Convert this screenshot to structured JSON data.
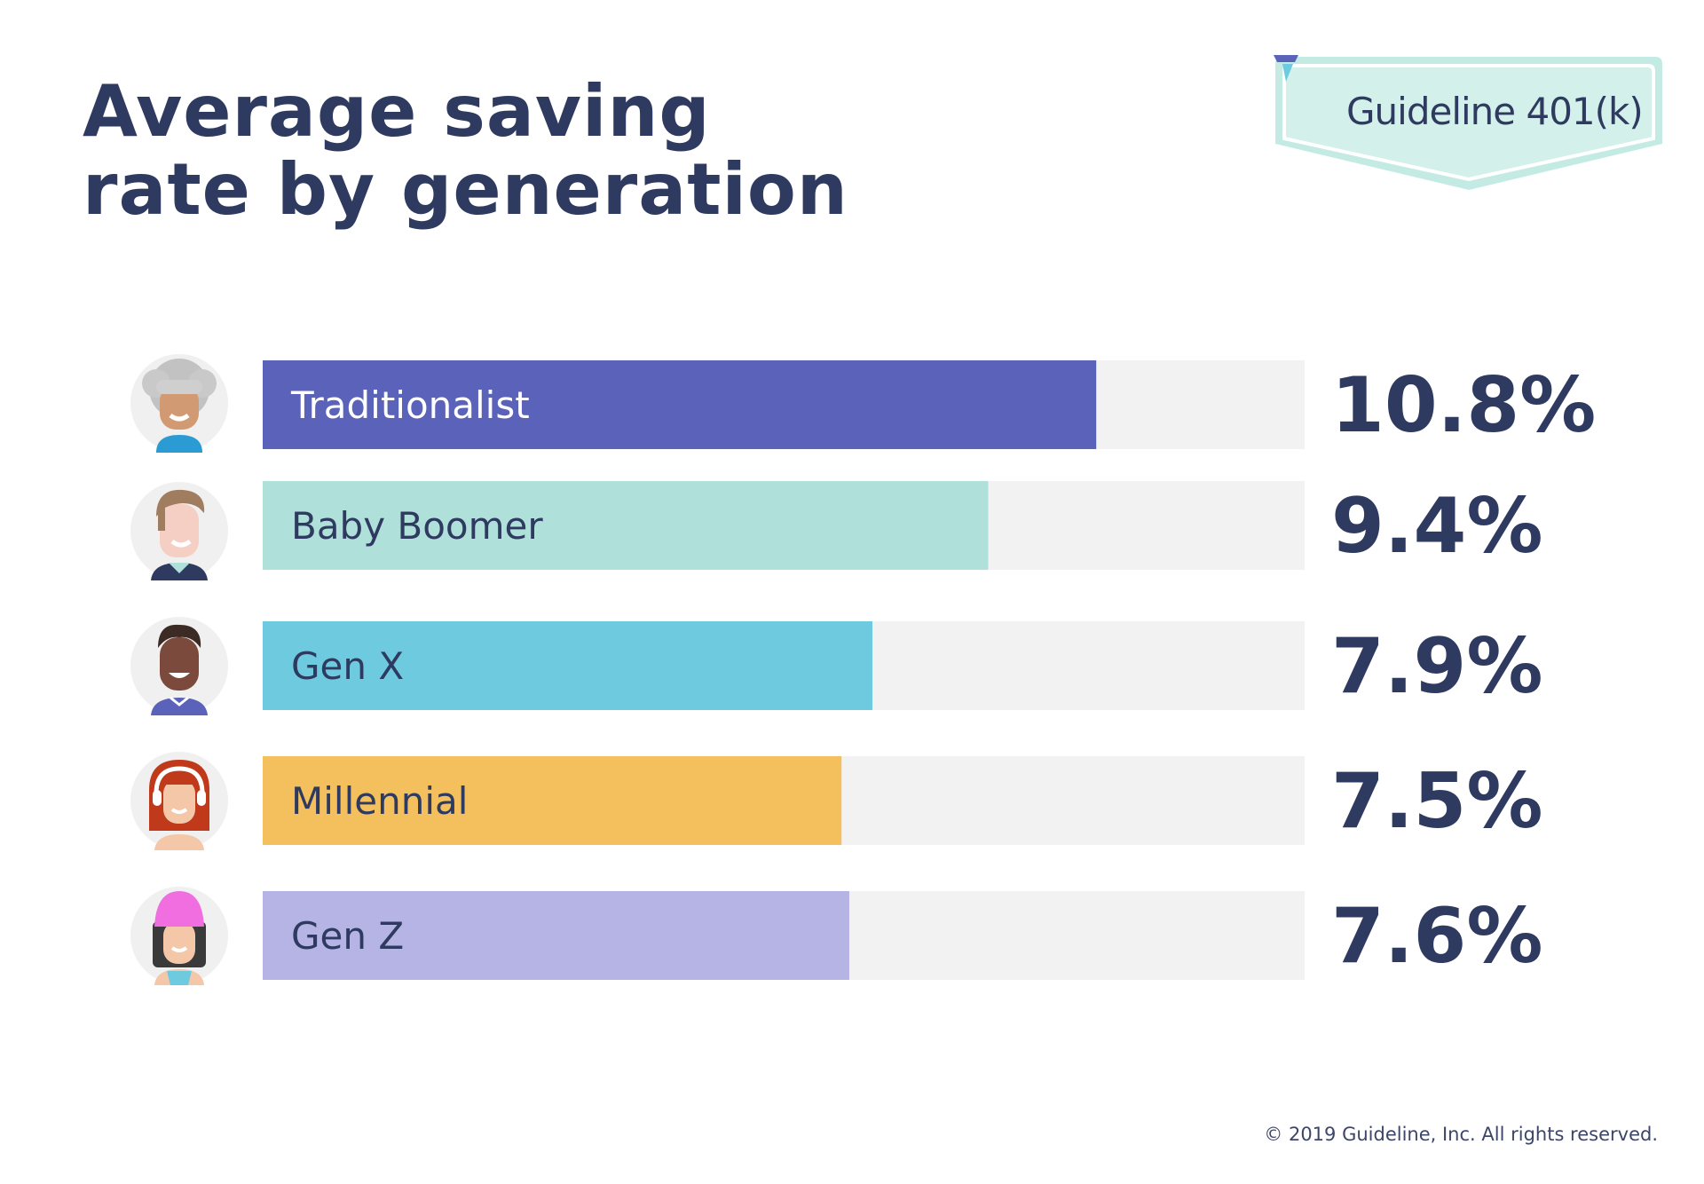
{
  "title_line1": "Average saving",
  "title_line2": "rate by generation",
  "logo": {
    "text": "Guideline 401(k)",
    "icon": "guideline-logo-icon",
    "badge_color": "#d3f0ea",
    "text_color": "#2e3a5f"
  },
  "footer": "© 2019 Guideline, Inc. All rights reserved.",
  "chart_data": {
    "type": "bar",
    "orientation": "horizontal",
    "title": "Average saving rate by generation",
    "categories": [
      "Traditionalist",
      "Baby Boomer",
      "Gen X",
      "Millennial",
      "Gen Z"
    ],
    "values": [
      10.8,
      9.4,
      7.9,
      7.5,
      7.6
    ],
    "value_labels": [
      "10.8%",
      "9.4%",
      "7.9%",
      "7.5%",
      "7.6%"
    ],
    "unit": "%",
    "xlim": [
      0,
      13.5
    ],
    "grid": false,
    "legend": "none",
    "colors": [
      "#5b62b9",
      "#afe0d9",
      "#6ecbdf",
      "#f4c05d",
      "#b6b3e5"
    ],
    "track_color": "#f2f2f2",
    "label_colors": [
      "#ffffff",
      "#2e3a5f",
      "#2e3a5f",
      "#2e3a5f",
      "#2e3a5f"
    ],
    "avatars": [
      "traditionalist-avatar-icon",
      "baby-boomer-avatar-icon",
      "gen-x-avatar-icon",
      "millennial-avatar-icon",
      "gen-z-avatar-icon"
    ]
  }
}
